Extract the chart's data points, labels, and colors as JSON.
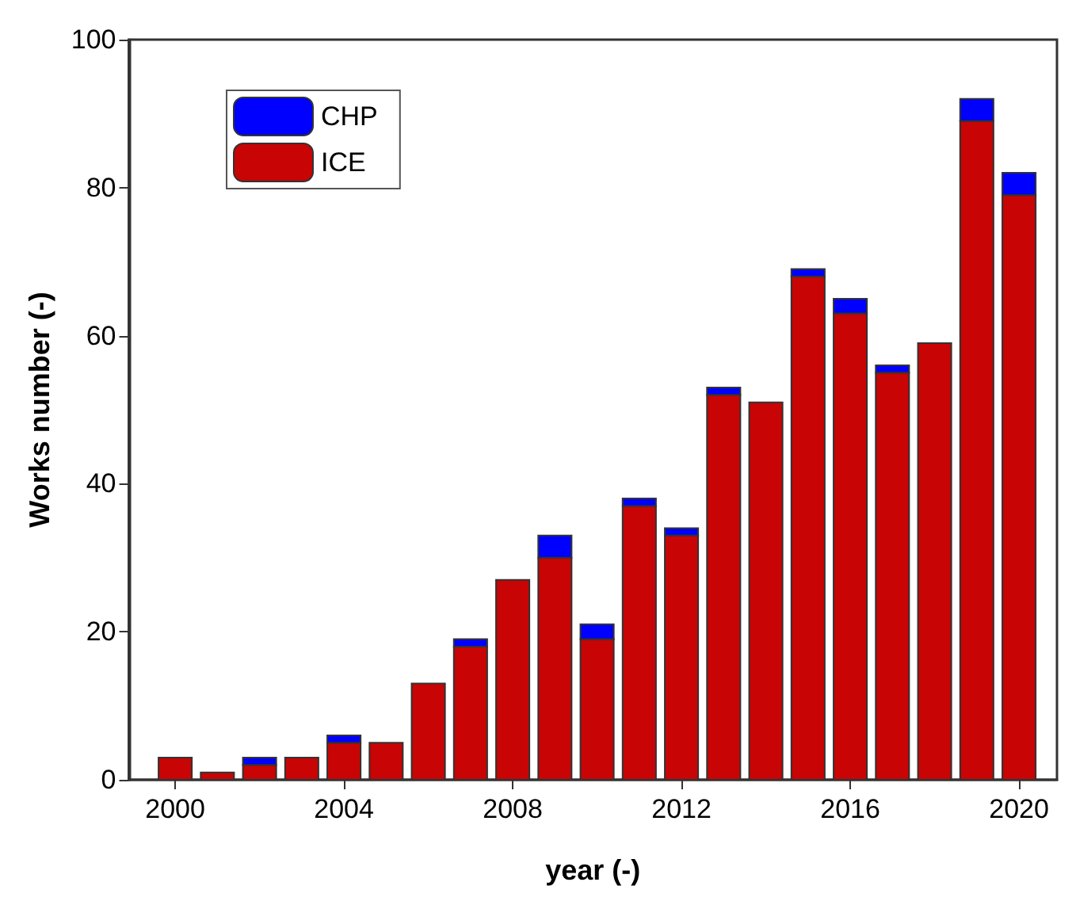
{
  "chart_data": {
    "type": "bar",
    "stacked": true,
    "xlabel": "year (-)",
    "ylabel": "Works number (-)",
    "x": [
      2000,
      2001,
      2002,
      2003,
      2004,
      2005,
      2006,
      2007,
      2008,
      2009,
      2010,
      2011,
      2012,
      2013,
      2014,
      2015,
      2016,
      2017,
      2018,
      2019,
      2020
    ],
    "series": [
      {
        "name": "ICE",
        "color": "#c80404",
        "values": [
          3,
          1,
          2,
          3,
          5,
          5,
          13,
          18,
          27,
          30,
          19,
          37,
          33,
          52,
          51,
          68,
          63,
          55,
          59,
          89,
          79
        ]
      },
      {
        "name": "CHP",
        "color": "#0000ff",
        "values": [
          0,
          0,
          1,
          0,
          1,
          0,
          0,
          1,
          0,
          3,
          2,
          1,
          1,
          1,
          0,
          1,
          2,
          1,
          0,
          3,
          3
        ]
      }
    ],
    "xlim": [
      1998.9,
      2020.9
    ],
    "xticks": [
      2000,
      2004,
      2008,
      2012,
      2016,
      2020
    ],
    "ylim": [
      0,
      100
    ],
    "yticks": [
      0,
      20,
      40,
      60,
      80,
      100
    ],
    "grid": false,
    "legend": "top left"
  }
}
